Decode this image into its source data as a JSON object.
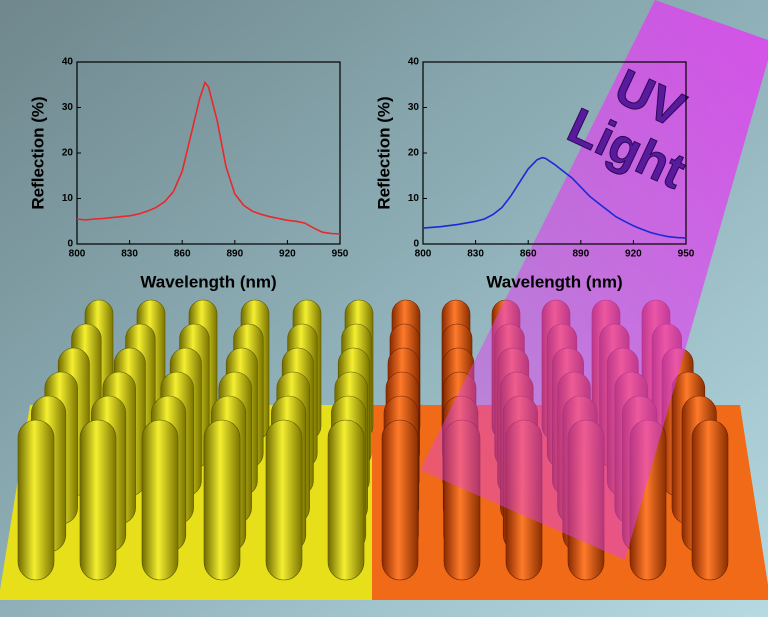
{
  "chart_data": [
    {
      "type": "line",
      "xlabel": "Wavelength (nm)",
      "ylabel": "Reflection (%)",
      "x": [
        800,
        805,
        810,
        815,
        820,
        825,
        830,
        835,
        840,
        845,
        850,
        855,
        860,
        865,
        870,
        873,
        875,
        880,
        885,
        890,
        895,
        900,
        905,
        910,
        915,
        920,
        925,
        930,
        935,
        940,
        945,
        950
      ],
      "series": [
        {
          "color": "#e8282a",
          "values": [
            5.5,
            5.3,
            5.5,
            5.6,
            5.8,
            6,
            6.2,
            6.6,
            7.2,
            8,
            9.3,
            11.5,
            16,
            24,
            32,
            35.5,
            34.5,
            27,
            17,
            11,
            8.5,
            7.2,
            6.5,
            6,
            5.6,
            5.2,
            5,
            4.6,
            3.5,
            2.6,
            2.3,
            2.2
          ]
        }
      ],
      "xlim": [
        800,
        950
      ],
      "ylim": [
        0,
        40
      ],
      "xticks": [
        800,
        830,
        860,
        890,
        920,
        950
      ],
      "yticks": [
        0,
        10,
        20,
        30,
        40
      ]
    },
    {
      "type": "line",
      "xlabel": "Wavelength (nm)",
      "ylabel": "Reflection (%)",
      "x": [
        800,
        810,
        820,
        830,
        835,
        840,
        845,
        850,
        855,
        860,
        865,
        868,
        870,
        875,
        880,
        885,
        890,
        895,
        900,
        905,
        910,
        915,
        920,
        925,
        930,
        935,
        940,
        945,
        950
      ],
      "series": [
        {
          "color": "#1a2ad8",
          "values": [
            3.5,
            3.8,
            4.3,
            5,
            5.5,
            6.5,
            8,
            10.5,
            13.5,
            16.5,
            18.5,
            19,
            18.8,
            17.5,
            16,
            14.5,
            12.5,
            10.5,
            9,
            7.5,
            6,
            5,
            4,
            3.2,
            2.5,
            2,
            1.6,
            1.4,
            1.3
          ]
        }
      ],
      "xlim": [
        800,
        950
      ],
      "ylim": [
        0,
        40
      ],
      "xticks": [
        800,
        830,
        860,
        890,
        920,
        950
      ],
      "yticks": [
        0,
        10,
        20,
        30,
        40
      ]
    }
  ],
  "overlay": {
    "lines": [
      "UV",
      "Light"
    ]
  }
}
